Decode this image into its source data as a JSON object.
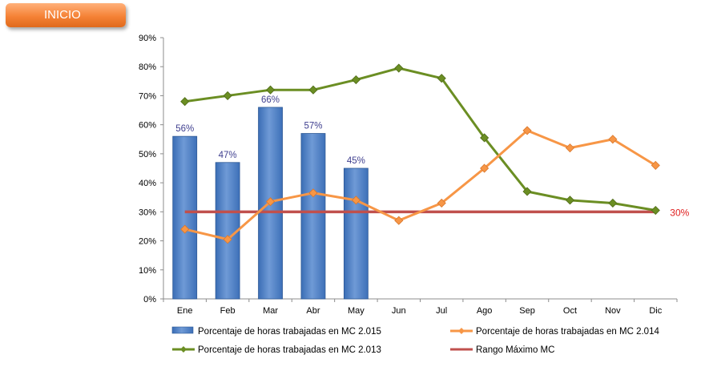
{
  "button": {
    "label": "INICIO"
  },
  "chart_data": {
    "type": "bar",
    "categories": [
      "Ene",
      "Feb",
      "Mar",
      "Abr",
      "May",
      "Jun",
      "Jul",
      "Ago",
      "Sep",
      "Oct",
      "Nov",
      "Dic"
    ],
    "ylim": [
      0,
      90
    ],
    "yticks": [
      "0%",
      "10%",
      "20%",
      "30%",
      "40%",
      "50%",
      "60%",
      "70%",
      "80%",
      "90%"
    ],
    "yticks_values": [
      0,
      10,
      20,
      30,
      40,
      50,
      60,
      70,
      80,
      90
    ],
    "grid": false,
    "legend_placement": "bottom",
    "series": [
      {
        "name": "Porcentaje de horas trabajadas en MC 2.015",
        "type": "bar",
        "color": "#4f81bd",
        "values": [
          56,
          47,
          66,
          57,
          45,
          null,
          null,
          null,
          null,
          null,
          null,
          null
        ],
        "labels": [
          "56%",
          "47%",
          "66%",
          "57%",
          "45%"
        ]
      },
      {
        "name": "Porcentaje de horas trabajadas en MC 2.014",
        "type": "line",
        "color": "#f79646",
        "values": [
          24,
          20.5,
          33.5,
          36.5,
          34,
          27,
          33,
          45,
          58,
          52,
          55,
          46
        ]
      },
      {
        "name": "Porcentaje de horas trabajadas en MC 2.013",
        "type": "line",
        "color": "#6b8e23",
        "values": [
          68,
          70,
          72,
          72,
          75.5,
          79.5,
          76,
          55.5,
          37,
          34,
          33,
          30.5
        ]
      },
      {
        "name": "Rango Máximo MC",
        "type": "line",
        "color": "#c0504d",
        "values": [
          30,
          30,
          30,
          30,
          30,
          30,
          30,
          30,
          30,
          30,
          30,
          30
        ],
        "label": "30%"
      }
    ]
  }
}
